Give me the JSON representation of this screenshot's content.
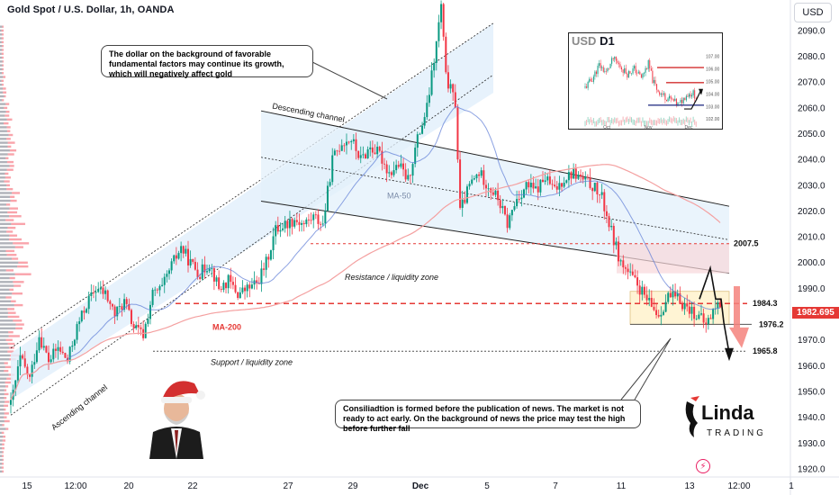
{
  "header": {
    "title": "Gold Spot / U.S. Dollar, 1h, OANDA",
    "currency_button": "USD",
    "current_price": "1982.695"
  },
  "notes": {
    "top": "The dollar on the background of favorable fundamental factors may continue its growth, which will negatively affect gold",
    "bottom": "Consiliadtion is formed before the publication of news. The market is not ready to act early. On the background of news the price may test the high before further fall"
  },
  "inset": {
    "title_prefix": "USD",
    "title_tf": "D1",
    "price_labels": [
      "107.00",
      "106.00",
      "105.00",
      "104.00",
      "103.00",
      "102.00"
    ],
    "time_labels": [
      "Oct",
      "Nov",
      "Dec"
    ]
  },
  "logo": {
    "top": "Linda",
    "bottom": "TRADING"
  },
  "colors": {
    "up": "#089981",
    "down": "#f23645",
    "ma50": "#5b7bd5",
    "ma200": "#f4a0a0",
    "channel_fill": "#e3f0fb",
    "level": "#e53935"
  },
  "chart_data": {
    "type": "candlestick",
    "symbol": "Gold Spot / U.S. Dollar",
    "timeframe": "1h",
    "ylim": [
      1917,
      2102
    ],
    "y_ticks": [
      1920,
      1930,
      1940,
      1950,
      1960,
      1970,
      1980,
      1990,
      2000,
      2010,
      2020,
      2030,
      2040,
      2050,
      2060,
      2070,
      2080,
      2090
    ],
    "x_ticks": [
      "15",
      "12:00",
      "20",
      "22",
      "27",
      "29",
      "Dec",
      "5",
      "7",
      "11",
      "13",
      "12:00",
      "1"
    ],
    "levels": [
      {
        "label": "2007.5",
        "value": 2007.5,
        "style": "dashed"
      },
      {
        "label": "1984.3",
        "value": 1984.3,
        "style": "dashed"
      },
      {
        "label": "1976.2",
        "value": 1976.2,
        "style": "solid"
      },
      {
        "label": "1965.8",
        "value": 1965.8,
        "style": "dotted"
      }
    ],
    "annotations": [
      "Descending channel",
      "Ascending channel",
      "MA-50",
      "MA-200",
      "Resistance / liquidity zone",
      "Support / liquidity zone"
    ],
    "price_path": [
      [
        0,
        1945
      ],
      [
        4,
        1963
      ],
      [
        8,
        1955
      ],
      [
        12,
        1972
      ],
      [
        16,
        1962
      ],
      [
        20,
        1967
      ],
      [
        24,
        1962
      ],
      [
        28,
        1975
      ],
      [
        32,
        1984
      ],
      [
        36,
        1990
      ],
      [
        40,
        1988
      ],
      [
        44,
        1980
      ],
      [
        48,
        1985
      ],
      [
        52,
        1975
      ],
      [
        56,
        1972
      ],
      [
        60,
        1988
      ],
      [
        64,
        1990
      ],
      [
        68,
        1999
      ],
      [
        72,
        2006
      ],
      [
        76,
        2000
      ],
      [
        80,
        1996
      ],
      [
        84,
        2000
      ],
      [
        88,
        1990
      ],
      [
        92,
        1993
      ],
      [
        96,
        1988
      ],
      [
        100,
        1990
      ],
      [
        104,
        1992
      ],
      [
        108,
        2000
      ],
      [
        112,
        2013
      ],
      [
        116,
        2015
      ],
      [
        120,
        2017
      ],
      [
        124,
        2015
      ],
      [
        128,
        2018
      ],
      [
        132,
        2015
      ],
      [
        136,
        2040
      ],
      [
        140,
        2047
      ],
      [
        144,
        2048
      ],
      [
        148,
        2040
      ],
      [
        152,
        2045
      ],
      [
        156,
        2042
      ],
      [
        160,
        2035
      ],
      [
        164,
        2038
      ],
      [
        168,
        2032
      ],
      [
        172,
        2048
      ],
      [
        176,
        2060
      ],
      [
        180,
        2085
      ],
      [
        182,
        2100
      ],
      [
        184,
        2072
      ],
      [
        188,
        2062
      ],
      [
        190,
        2020
      ],
      [
        194,
        2030
      ],
      [
        198,
        2035
      ],
      [
        202,
        2030
      ],
      [
        206,
        2025
      ],
      [
        210,
        2015
      ],
      [
        214,
        2025
      ],
      [
        218,
        2030
      ],
      [
        222,
        2028
      ],
      [
        226,
        2033
      ],
      [
        230,
        2028
      ],
      [
        234,
        2033
      ],
      [
        238,
        2035
      ],
      [
        242,
        2032
      ],
      [
        246,
        2030
      ],
      [
        250,
        2025
      ],
      [
        254,
        2012
      ],
      [
        258,
        2000
      ],
      [
        262,
        1995
      ],
      [
        266,
        1990
      ],
      [
        270,
        1984
      ],
      [
        274,
        1980
      ],
      [
        278,
        1987
      ],
      [
        282,
        1986
      ],
      [
        286,
        1983
      ],
      [
        290,
        1980
      ],
      [
        294,
        1976
      ],
      [
        298,
        1983
      ],
      [
        300,
        1984
      ]
    ]
  }
}
